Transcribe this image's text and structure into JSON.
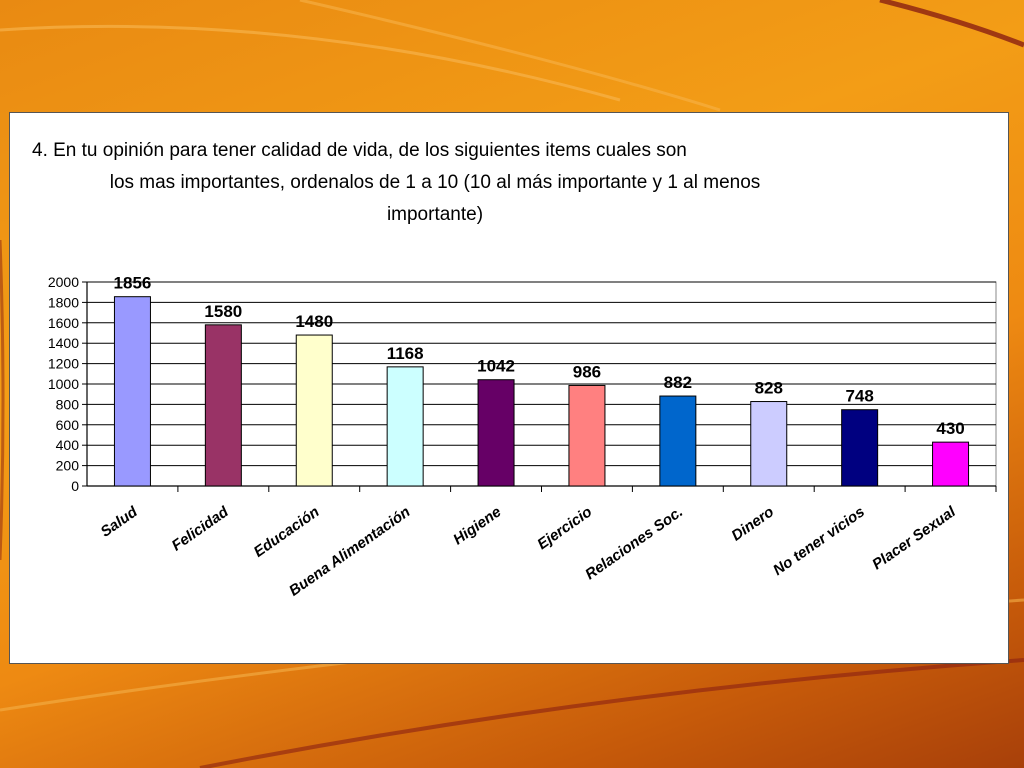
{
  "slide": {
    "title_line1": "4.   En tu opinión para tener calidad de vida, de los siguientes items cuales son",
    "title_line2": "los mas importantes, ordenalos de 1 a 10 (10 al más importante y 1 al menos",
    "title_line3": "importante)"
  },
  "chart_data": {
    "type": "bar",
    "categories": [
      "Salud",
      "Felicidad",
      "Educación",
      "Buena Alimentación",
      "Higiene",
      "Ejercicio",
      "Relaciones Soc.",
      "Dinero",
      "No tener vicios",
      "Placer Sexual"
    ],
    "values": [
      1856,
      1580,
      1480,
      1168,
      1042,
      986,
      882,
      828,
      748,
      430
    ],
    "bar_colors": [
      "#9999ff",
      "#993366",
      "#ffffcc",
      "#ccffff",
      "#660066",
      "#ff8080",
      "#0066cc",
      "#ccccff",
      "#000080",
      "#ff00ff"
    ],
    "ylim": [
      0,
      2000
    ],
    "yticks": [
      0,
      200,
      400,
      600,
      800,
      1000,
      1200,
      1400,
      1600,
      1800,
      2000
    ],
    "grid": true,
    "legend": "none",
    "data_labels": true
  }
}
